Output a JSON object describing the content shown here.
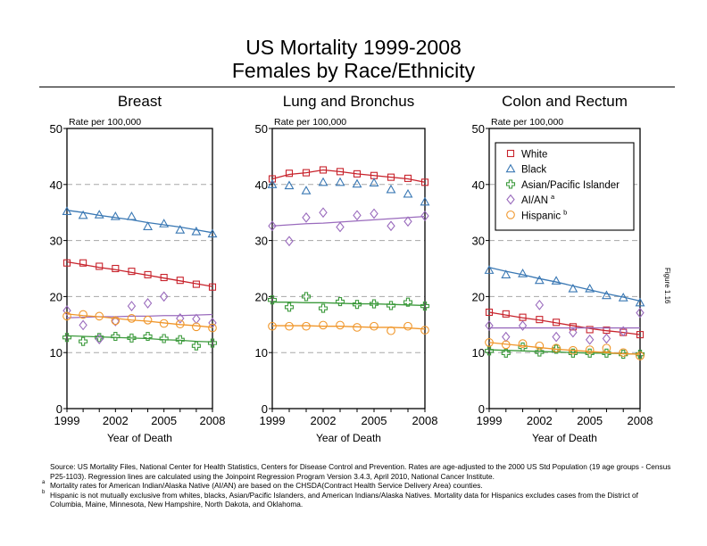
{
  "title_lines": [
    "US Mortality 1999-2008",
    "Females by Race/Ethnicity"
  ],
  "figure_label": "Figure 1.16",
  "footnotes": {
    "source": "Source:  US Mortality Files, National Center for Health Statistics, Centers for Disease Control and Prevention.  Rates are age-adjusted to the 2000 US Std Population (19 age groups - Census P25-1103).  Regression lines are calculated using the Joinpoint Regression Program Version 3.4.3, April 2010, National Cancer Institute.",
    "a_marker": "a",
    "a_text": "Mortality rates for American Indian/Alaska Native (AI/AN) are based on the CHSDA(Contract Health Service Delivery Area) counties.",
    "b_marker": "b",
    "b_text": "Hispanic is not mutually exclusive from whites, blacks, Asian/Pacific Islanders, and American Indians/Alaska Natives.  Mortality data for Hispanics excludes cases from the District of Columbia, Maine, Minnesota, New Hampshire, North Dakota, and Oklahoma."
  },
  "legend": {
    "placement": "top-inside-right-panel",
    "entries": [
      {
        "key": "white",
        "label": "White",
        "sup": "",
        "marker": "square",
        "color": "#c8232c"
      },
      {
        "key": "black",
        "label": "Black",
        "sup": "",
        "marker": "triangle",
        "color": "#3a78b4"
      },
      {
        "key": "api",
        "label": "Asian/Pacific Islander",
        "sup": "",
        "marker": "plus",
        "color": "#3c9a3c"
      },
      {
        "key": "aian",
        "label": "AI/AN",
        "sup": "a",
        "marker": "diamond",
        "color": "#9a6bbd"
      },
      {
        "key": "hispanic",
        "label": "Hispanic",
        "sup": "b",
        "marker": "circle",
        "color": "#f0962a"
      }
    ]
  },
  "chart_data": [
    {
      "type": "scatter",
      "title": "Breast",
      "xlabel": "Year of Death",
      "ylabel": "Rate per 100,000",
      "x": [
        1999,
        2000,
        2001,
        2002,
        2003,
        2004,
        2005,
        2006,
        2007,
        2008
      ],
      "xticks": [
        1999,
        2002,
        2005,
        2008
      ],
      "yticks": [
        0,
        10,
        20,
        30,
        40,
        50
      ],
      "ylim": [
        0,
        50
      ],
      "grid": "dashed-horizontal",
      "series": [
        {
          "name": "White",
          "key": "white",
          "values": [
            26.0,
            26.0,
            25.4,
            25.0,
            24.5,
            23.9,
            23.4,
            22.9,
            22.2,
            21.7
          ],
          "trend": [
            26.2,
            25.7,
            25.2,
            24.8,
            24.3,
            23.8,
            23.3,
            22.8,
            22.3,
            21.8
          ]
        },
        {
          "name": "Black",
          "key": "black",
          "values": [
            35.2,
            34.5,
            34.6,
            34.3,
            34.3,
            32.5,
            33.0,
            31.9,
            31.6,
            31.2
          ],
          "trend": [
            35.4,
            35.0,
            34.5,
            34.1,
            33.7,
            33.2,
            32.8,
            32.4,
            31.9,
            31.4
          ]
        },
        {
          "name": "Asian/Pacific Islander",
          "key": "api",
          "values": [
            12.7,
            12.0,
            12.7,
            12.9,
            12.6,
            12.9,
            12.5,
            12.3,
            11.2,
            11.7
          ],
          "trend": [
            13.0,
            12.9,
            12.8,
            12.7,
            12.6,
            12.5,
            12.3,
            12.2,
            12.0,
            11.9
          ]
        },
        {
          "name": "AI/AN",
          "key": "aian",
          "values": [
            17.5,
            14.9,
            12.4,
            15.6,
            18.3,
            18.8,
            20.0,
            16.1,
            16.0,
            15.3
          ],
          "trend": [
            16.2,
            16.3,
            16.4,
            16.4,
            16.5,
            16.5,
            16.6,
            16.6,
            16.7,
            16.8
          ]
        },
        {
          "name": "Hispanic",
          "key": "hispanic",
          "values": [
            16.5,
            16.8,
            16.5,
            15.7,
            16.1,
            15.8,
            15.2,
            15.1,
            14.6,
            14.4
          ],
          "trend": [
            16.9,
            16.6,
            16.4,
            16.1,
            15.8,
            15.6,
            15.3,
            15.0,
            14.8,
            14.5
          ]
        }
      ]
    },
    {
      "type": "scatter",
      "title": "Lung and Bronchus",
      "xlabel": "Year of Death",
      "ylabel": "Rate per 100,000",
      "x": [
        1999,
        2000,
        2001,
        2002,
        2003,
        2004,
        2005,
        2006,
        2007,
        2008
      ],
      "xticks": [
        1999,
        2002,
        2005,
        2008
      ],
      "yticks": [
        0,
        10,
        20,
        30,
        40,
        50
      ],
      "ylim": [
        0,
        50
      ],
      "grid": "dashed-horizontal",
      "series": [
        {
          "name": "White",
          "key": "white",
          "values": [
            41.0,
            42.0,
            42.1,
            42.6,
            42.3,
            41.9,
            41.6,
            41.3,
            41.1,
            40.4
          ],
          "trend": [
            41.0,
            41.8,
            42.1,
            42.6,
            42.3,
            41.9,
            41.6,
            41.3,
            41.0,
            40.4
          ]
        },
        {
          "name": "Black",
          "key": "black",
          "values": [
            40.0,
            39.8,
            38.9,
            40.4,
            40.4,
            40.1,
            40.3,
            39.1,
            38.3,
            36.9
          ],
          "trend": null
        },
        {
          "name": "Asian/Pacific Islander",
          "key": "api",
          "values": [
            19.4,
            18.1,
            20.0,
            17.9,
            19.1,
            18.6,
            18.7,
            18.4,
            19.0,
            18.3
          ],
          "trend": [
            19.0,
            19.0,
            18.9,
            18.9,
            18.8,
            18.7,
            18.7,
            18.6,
            18.5,
            18.4
          ]
        },
        {
          "name": "AI/AN",
          "key": "aian",
          "values": [
            32.6,
            29.9,
            34.1,
            35.0,
            32.4,
            34.5,
            34.8,
            32.6,
            33.4,
            34.4
          ],
          "trend": [
            32.6,
            32.8,
            33.0,
            33.1,
            33.3,
            33.5,
            33.7,
            33.9,
            34.1,
            34.3
          ]
        },
        {
          "name": "Hispanic",
          "key": "hispanic",
          "values": [
            14.7,
            14.7,
            14.7,
            14.9,
            14.9,
            14.5,
            14.7,
            13.9,
            14.7,
            14.0
          ],
          "trend": [
            14.8,
            14.8,
            14.8,
            14.7,
            14.7,
            14.6,
            14.5,
            14.5,
            14.4,
            14.2
          ]
        }
      ]
    },
    {
      "type": "scatter",
      "title": "Colon and Rectum",
      "xlabel": "Year of Death",
      "ylabel": "Rate per 100,000",
      "x": [
        1999,
        2000,
        2001,
        2002,
        2003,
        2004,
        2005,
        2006,
        2007,
        2008
      ],
      "xticks": [
        1999,
        2002,
        2005,
        2008
      ],
      "yticks": [
        0,
        10,
        20,
        30,
        40,
        50
      ],
      "ylim": [
        0,
        50
      ],
      "grid": "dashed-horizontal",
      "series": [
        {
          "name": "White",
          "key": "white",
          "values": [
            17.2,
            16.9,
            16.3,
            15.9,
            15.4,
            14.6,
            14.1,
            14.0,
            13.6,
            13.2
          ],
          "trend": [
            17.2,
            16.7,
            16.2,
            15.8,
            15.3,
            14.8,
            14.3,
            13.9,
            13.6,
            13.2
          ]
        },
        {
          "name": "Black",
          "key": "black",
          "values": [
            24.7,
            23.9,
            24.1,
            22.9,
            22.8,
            21.4,
            21.4,
            20.2,
            19.8,
            18.9
          ],
          "trend": [
            25.2,
            24.5,
            23.9,
            23.2,
            22.6,
            21.9,
            21.2,
            20.5,
            19.9,
            19.2
          ]
        },
        {
          "name": "Asian/Pacific Islander",
          "key": "api",
          "values": [
            10.3,
            9.9,
            11.0,
            10.1,
            10.6,
            9.9,
            9.9,
            9.9,
            9.7,
            9.7
          ],
          "trend": [
            10.5,
            10.4,
            10.3,
            10.2,
            10.1,
            10.0,
            9.9,
            9.9,
            9.8,
            9.7
          ]
        },
        {
          "name": "AI/AN",
          "key": "aian",
          "values": [
            14.8,
            12.8,
            14.8,
            18.5,
            12.8,
            13.6,
            12.3,
            12.5,
            13.8,
            17.1
          ],
          "trend": [
            14.4,
            14.4,
            14.4,
            14.4,
            14.4,
            14.4,
            14.4,
            14.4,
            14.4,
            14.4
          ]
        },
        {
          "name": "Hispanic",
          "key": "hispanic",
          "values": [
            11.8,
            11.4,
            11.6,
            11.2,
            10.8,
            10.4,
            10.5,
            10.8,
            10.0,
            9.4
          ],
          "trend": [
            11.8,
            11.5,
            11.2,
            10.9,
            10.6,
            10.4,
            10.2,
            10.0,
            9.8,
            9.7
          ]
        }
      ]
    }
  ]
}
